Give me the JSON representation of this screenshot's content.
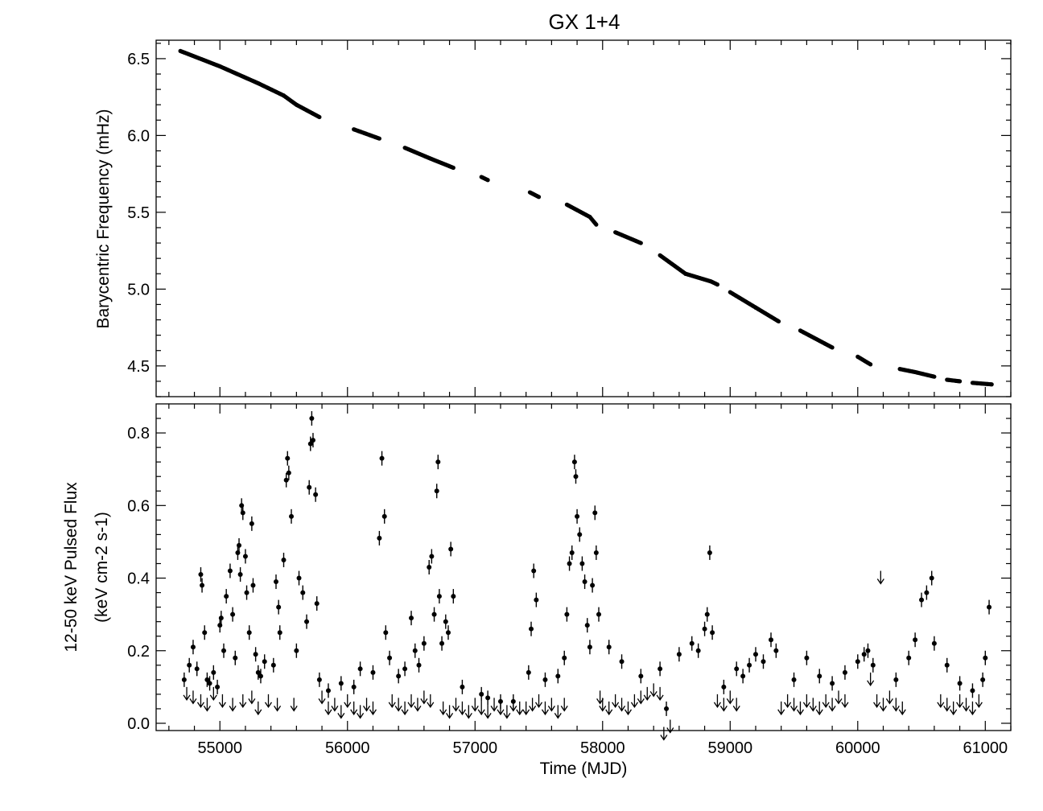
{
  "chart_data": {
    "title": "GX 1+4",
    "xlabel": "Time (MJD)",
    "xlim": [
      54500,
      61200
    ],
    "xticks": [
      "55000",
      "56000",
      "57000",
      "58000",
      "59000",
      "60000",
      "61000"
    ],
    "panels": [
      {
        "type": "scatter",
        "ylabel": "Barycentric Frequency (mHz)",
        "ylim": [
          4.3,
          6.62
        ],
        "yticks": [
          "4.5",
          "5.0",
          "5.5",
          "6.0",
          "6.5"
        ],
        "segments": [
          {
            "x": [
              54690,
              55000,
              55300,
              55500,
              55600,
              55780
            ],
            "y": [
              6.55,
              6.45,
              6.34,
              6.26,
              6.2,
              6.12
            ]
          },
          {
            "x": [
              56050,
              56250
            ],
            "y": [
              6.04,
              5.98
            ]
          },
          {
            "x": [
              56450,
              56650,
              56830
            ],
            "y": [
              5.92,
              5.85,
              5.79
            ]
          },
          {
            "x": [
              57050,
              57100
            ],
            "y": [
              5.73,
              5.71
            ]
          },
          {
            "x": [
              57430,
              57500
            ],
            "y": [
              5.63,
              5.6
            ]
          },
          {
            "x": [
              57720,
              57900,
              57950
            ],
            "y": [
              5.55,
              5.47,
              5.42
            ]
          },
          {
            "x": [
              58100,
              58300
            ],
            "y": [
              5.37,
              5.3
            ]
          },
          {
            "x": [
              58450,
              58650,
              58850,
              58900
            ],
            "y": [
              5.22,
              5.1,
              5.05,
              5.03
            ]
          },
          {
            "x": [
              59000,
              59200,
              59380
            ],
            "y": [
              4.98,
              4.88,
              4.79
            ]
          },
          {
            "x": [
              59550,
              59800
            ],
            "y": [
              4.73,
              4.62
            ]
          },
          {
            "x": [
              60000,
              60100
            ],
            "y": [
              4.56,
              4.51
            ]
          },
          {
            "x": [
              60330,
              60450,
              60600
            ],
            "y": [
              4.48,
              4.46,
              4.43
            ]
          },
          {
            "x": [
              60700,
              60800
            ],
            "y": [
              4.41,
              4.4
            ]
          },
          {
            "x": [
              60900,
              61050
            ],
            "y": [
              4.39,
              4.38
            ]
          }
        ]
      },
      {
        "type": "scatter",
        "ylabel_line1": "12-50 keV Pulsed Flux",
        "ylabel_line2": "(keV cm-2 s-1)",
        "ylim": [
          -0.02,
          0.88
        ],
        "yticks": [
          "0.0",
          "0.2",
          "0.4",
          "0.6",
          "0.8"
        ],
        "detections": [
          [
            54720,
            0.12
          ],
          [
            54760,
            0.16
          ],
          [
            54790,
            0.21
          ],
          [
            54820,
            0.15
          ],
          [
            54850,
            0.41
          ],
          [
            54860,
            0.38
          ],
          [
            54880,
            0.25
          ],
          [
            54900,
            0.12
          ],
          [
            54920,
            0.11
          ],
          [
            54950,
            0.14
          ],
          [
            54980,
            0.1
          ],
          [
            55000,
            0.27
          ],
          [
            55010,
            0.29
          ],
          [
            55030,
            0.2
          ],
          [
            55050,
            0.35
          ],
          [
            55080,
            0.42
          ],
          [
            55100,
            0.3
          ],
          [
            55120,
            0.18
          ],
          [
            55140,
            0.47
          ],
          [
            55150,
            0.49
          ],
          [
            55160,
            0.41
          ],
          [
            55170,
            0.6
          ],
          [
            55180,
            0.58
          ],
          [
            55200,
            0.46
          ],
          [
            55210,
            0.36
          ],
          [
            55230,
            0.25
          ],
          [
            55250,
            0.55
          ],
          [
            55260,
            0.38
          ],
          [
            55280,
            0.19
          ],
          [
            55300,
            0.14
          ],
          [
            55320,
            0.13
          ],
          [
            55350,
            0.17
          ],
          [
            55420,
            0.16
          ],
          [
            55440,
            0.39
          ],
          [
            55460,
            0.32
          ],
          [
            55470,
            0.25
          ],
          [
            55500,
            0.45
          ],
          [
            55520,
            0.67
          ],
          [
            55530,
            0.73
          ],
          [
            55540,
            0.69
          ],
          [
            55560,
            0.57
          ],
          [
            55600,
            0.2
          ],
          [
            55620,
            0.4
          ],
          [
            55650,
            0.36
          ],
          [
            55680,
            0.28
          ],
          [
            55700,
            0.65
          ],
          [
            55710,
            0.77
          ],
          [
            55720,
            0.84
          ],
          [
            55730,
            0.78
          ],
          [
            55750,
            0.63
          ],
          [
            55760,
            0.33
          ],
          [
            55780,
            0.12
          ],
          [
            55850,
            0.09
          ],
          [
            55950,
            0.11
          ],
          [
            56050,
            0.1
          ],
          [
            56100,
            0.15
          ],
          [
            56200,
            0.14
          ],
          [
            56250,
            0.51
          ],
          [
            56270,
            0.73
          ],
          [
            56290,
            0.57
          ],
          [
            56300,
            0.25
          ],
          [
            56330,
            0.18
          ],
          [
            56400,
            0.13
          ],
          [
            56450,
            0.15
          ],
          [
            56500,
            0.29
          ],
          [
            56530,
            0.2
          ],
          [
            56560,
            0.16
          ],
          [
            56600,
            0.22
          ],
          [
            56640,
            0.43
          ],
          [
            56660,
            0.46
          ],
          [
            56680,
            0.3
          ],
          [
            56700,
            0.64
          ],
          [
            56710,
            0.72
          ],
          [
            56720,
            0.35
          ],
          [
            56740,
            0.22
          ],
          [
            56770,
            0.28
          ],
          [
            56790,
            0.25
          ],
          [
            56810,
            0.48
          ],
          [
            56830,
            0.35
          ],
          [
            56900,
            0.1
          ],
          [
            57050,
            0.08
          ],
          [
            57100,
            0.07
          ],
          [
            57200,
            0.06
          ],
          [
            57300,
            0.06
          ],
          [
            57420,
            0.14
          ],
          [
            57440,
            0.26
          ],
          [
            57460,
            0.42
          ],
          [
            57480,
            0.34
          ],
          [
            57550,
            0.12
          ],
          [
            57650,
            0.13
          ],
          [
            57700,
            0.18
          ],
          [
            57720,
            0.3
          ],
          [
            57740,
            0.44
          ],
          [
            57760,
            0.47
          ],
          [
            57780,
            0.72
          ],
          [
            57790,
            0.68
          ],
          [
            57800,
            0.57
          ],
          [
            57820,
            0.52
          ],
          [
            57840,
            0.44
          ],
          [
            57860,
            0.39
          ],
          [
            57880,
            0.27
          ],
          [
            57900,
            0.21
          ],
          [
            57920,
            0.38
          ],
          [
            57940,
            0.58
          ],
          [
            57950,
            0.47
          ],
          [
            57970,
            0.3
          ],
          [
            58050,
            0.21
          ],
          [
            58150,
            0.17
          ],
          [
            58300,
            0.13
          ],
          [
            58450,
            0.15
          ],
          [
            58500,
            0.04
          ],
          [
            58600,
            0.19
          ],
          [
            58700,
            0.22
          ],
          [
            58750,
            0.2
          ],
          [
            58800,
            0.26
          ],
          [
            58820,
            0.3
          ],
          [
            58840,
            0.47
          ],
          [
            58860,
            0.25
          ],
          [
            58950,
            0.1
          ],
          [
            59050,
            0.15
          ],
          [
            59100,
            0.13
          ],
          [
            59150,
            0.16
          ],
          [
            59200,
            0.19
          ],
          [
            59260,
            0.17
          ],
          [
            59320,
            0.23
          ],
          [
            59360,
            0.2
          ],
          [
            59500,
            0.12
          ],
          [
            59600,
            0.18
          ],
          [
            59700,
            0.13
          ],
          [
            59800,
            0.11
          ],
          [
            59900,
            0.14
          ],
          [
            60000,
            0.17
          ],
          [
            60050,
            0.19
          ],
          [
            60080,
            0.2
          ],
          [
            60120,
            0.16
          ],
          [
            60300,
            0.12
          ],
          [
            60400,
            0.18
          ],
          [
            60450,
            0.23
          ],
          [
            60500,
            0.34
          ],
          [
            60540,
            0.36
          ],
          [
            60580,
            0.4
          ],
          [
            60600,
            0.22
          ],
          [
            60700,
            0.16
          ],
          [
            60800,
            0.11
          ],
          [
            60900,
            0.09
          ],
          [
            60980,
            0.12
          ],
          [
            61000,
            0.18
          ],
          [
            61030,
            0.32
          ]
        ],
        "upper_limits": [
          [
            54740,
            0.1
          ],
          [
            54790,
            0.09
          ],
          [
            54850,
            0.08
          ],
          [
            54900,
            0.07
          ],
          [
            54950,
            0.1
          ],
          [
            55020,
            0.08
          ],
          [
            55100,
            0.07
          ],
          [
            55180,
            0.08
          ],
          [
            55250,
            0.09
          ],
          [
            55300,
            0.06
          ],
          [
            55380,
            0.08
          ],
          [
            55450,
            0.07
          ],
          [
            55580,
            0.07
          ],
          [
            55800,
            0.09
          ],
          [
            55850,
            0.06
          ],
          [
            55900,
            0.07
          ],
          [
            55950,
            0.05
          ],
          [
            56000,
            0.08
          ],
          [
            56050,
            0.06
          ],
          [
            56100,
            0.05
          ],
          [
            56150,
            0.07
          ],
          [
            56200,
            0.06
          ],
          [
            56350,
            0.08
          ],
          [
            56400,
            0.07
          ],
          [
            56450,
            0.06
          ],
          [
            56500,
            0.08
          ],
          [
            56550,
            0.07
          ],
          [
            56600,
            0.09
          ],
          [
            56650,
            0.08
          ],
          [
            56750,
            0.06
          ],
          [
            56800,
            0.05
          ],
          [
            56850,
            0.07
          ],
          [
            56900,
            0.06
          ],
          [
            56950,
            0.05
          ],
          [
            57000,
            0.07
          ],
          [
            57050,
            0.06
          ],
          [
            57100,
            0.05
          ],
          [
            57150,
            0.07
          ],
          [
            57200,
            0.06
          ],
          [
            57250,
            0.05
          ],
          [
            57300,
            0.07
          ],
          [
            57350,
            0.06
          ],
          [
            57400,
            0.06
          ],
          [
            57450,
            0.07
          ],
          [
            57500,
            0.08
          ],
          [
            57550,
            0.06
          ],
          [
            57600,
            0.07
          ],
          [
            57650,
            0.05
          ],
          [
            57700,
            0.07
          ],
          [
            57980,
            0.09
          ],
          [
            58000,
            0.07
          ],
          [
            58050,
            0.06
          ],
          [
            58100,
            0.08
          ],
          [
            58150,
            0.07
          ],
          [
            58200,
            0.06
          ],
          [
            58250,
            0.08
          ],
          [
            58300,
            0.09
          ],
          [
            58350,
            0.1
          ],
          [
            58400,
            0.11
          ],
          [
            58450,
            0.1
          ],
          [
            58480,
            -0.01
          ],
          [
            58530,
            0.01
          ],
          [
            58900,
            0.08
          ],
          [
            58950,
            0.07
          ],
          [
            59000,
            0.09
          ],
          [
            59050,
            0.07
          ],
          [
            59400,
            0.06
          ],
          [
            59450,
            0.08
          ],
          [
            59500,
            0.07
          ],
          [
            59550,
            0.06
          ],
          [
            59600,
            0.08
          ],
          [
            59650,
            0.07
          ],
          [
            59700,
            0.06
          ],
          [
            59750,
            0.08
          ],
          [
            59800,
            0.07
          ],
          [
            59850,
            0.09
          ],
          [
            59900,
            0.08
          ],
          [
            60100,
            0.14
          ],
          [
            60150,
            0.08
          ],
          [
            60180,
            0.42
          ],
          [
            60200,
            0.07
          ],
          [
            60250,
            0.09
          ],
          [
            60300,
            0.07
          ],
          [
            60350,
            0.06
          ],
          [
            60650,
            0.08
          ],
          [
            60700,
            0.07
          ],
          [
            60750,
            0.06
          ],
          [
            60800,
            0.08
          ],
          [
            60850,
            0.07
          ],
          [
            60900,
            0.06
          ],
          [
            60950,
            0.08
          ]
        ]
      }
    ]
  }
}
